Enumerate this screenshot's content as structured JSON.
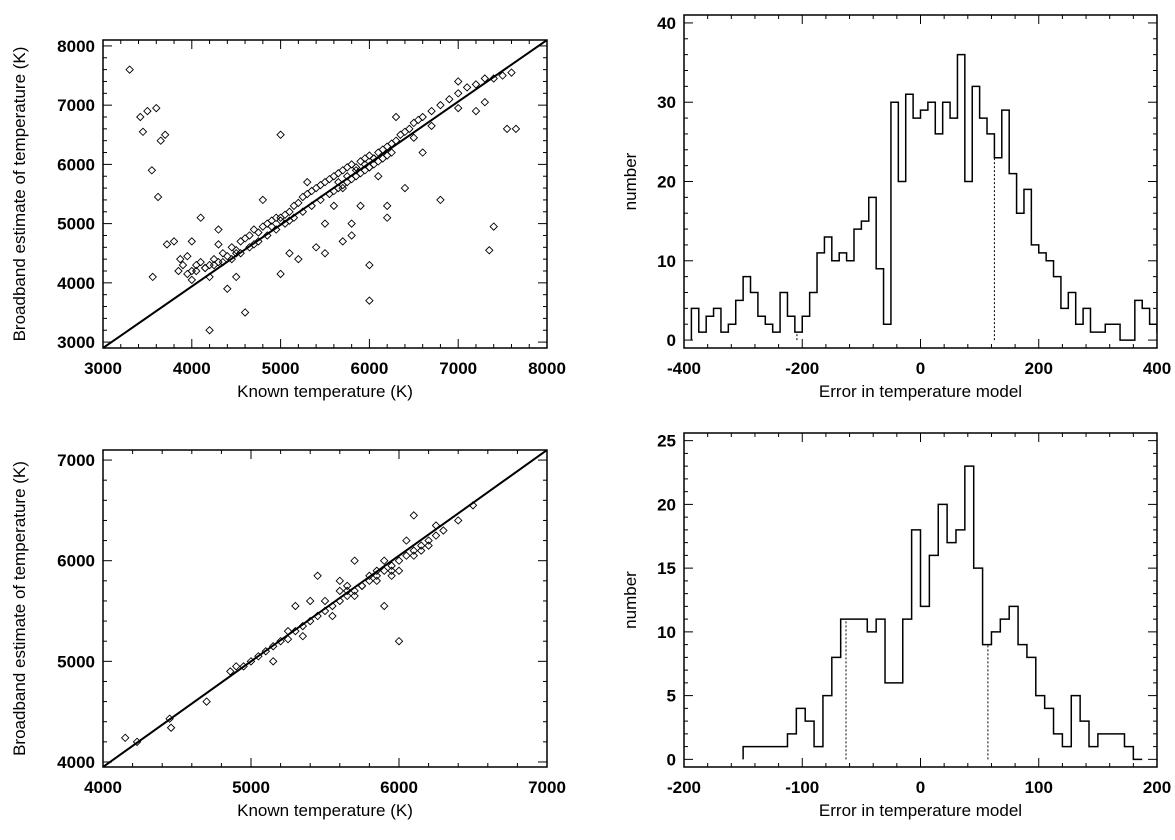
{
  "chart_data": [
    {
      "type": "scatter",
      "xlabel": "Known temperature (K)",
      "ylabel": "Broadband estimate of temperature (K)",
      "xlim": [
        3000,
        8000
      ],
      "ylim": [
        2900,
        8100
      ],
      "xticks": [
        3000,
        4000,
        5000,
        6000,
        7000,
        8000
      ],
      "yticks": [
        3000,
        4000,
        5000,
        6000,
        7000,
        8000
      ],
      "marker": "open-diamond",
      "fit_line": {
        "x": [
          3000,
          8000
        ],
        "y": [
          2900,
          8100
        ]
      },
      "x": [
        3300,
        3420,
        3450,
        3500,
        3550,
        3600,
        3620,
        3700,
        3800,
        3650,
        3560,
        3720,
        3870,
        3900,
        3950,
        4000,
        4050,
        4100,
        4150,
        4200,
        4250,
        4300,
        4200,
        4350,
        4400,
        4450,
        4500,
        4550,
        4600,
        4650,
        4700,
        4750,
        4800,
        4850,
        4900,
        4950,
        5000,
        5050,
        5100,
        5150,
        5200,
        5250,
        5300,
        5350,
        5400,
        5450,
        5500,
        5550,
        5600,
        5650,
        5700,
        5750,
        5800,
        5850,
        5900,
        5950,
        6000,
        6050,
        6100,
        6150,
        6200,
        6250,
        6300,
        6350,
        6400,
        6450,
        6500,
        6550,
        6600,
        6700,
        6800,
        6900,
        7000,
        7100,
        7200,
        7300,
        7400,
        7500,
        7600,
        4000,
        4100,
        4300,
        4500,
        4800,
        5000,
        5200,
        5400,
        5600,
        5800,
        6000,
        6200,
        6400,
        5100,
        5300,
        5500,
        5700,
        5900,
        6100,
        6300,
        6600,
        6800,
        7000,
        7200,
        7350,
        7400,
        7550,
        7650,
        4200,
        4400,
        4600,
        5000,
        5500,
        5800,
        6000,
        6200,
        3850,
        3950,
        4050,
        4150,
        4250,
        4350,
        4450,
        4550,
        4650,
        4750,
        4850,
        4950,
        5050,
        5150,
        5250,
        5350,
        5450,
        5550,
        5650,
        5750,
        5850,
        5950,
        6050,
        6150,
        6250,
        5700,
        5800,
        5900,
        6000,
        6100,
        5600,
        5650,
        5750,
        5850,
        5950,
        6050,
        4500,
        4700,
        4900,
        5100,
        6500,
        6700,
        7300,
        7000,
        4000,
        5000,
        6000,
        4300,
        5700,
        6200
      ],
      "y": [
        7600,
        6800,
        6550,
        6900,
        5900,
        6950,
        5450,
        6500,
        4700,
        6400,
        4100,
        4650,
        4400,
        4300,
        4450,
        4200,
        4300,
        4350,
        4250,
        4300,
        4400,
        4350,
        3200,
        4500,
        4450,
        4600,
        4550,
        4700,
        4750,
        4800,
        4900,
        4850,
        4950,
        5000,
        5050,
        5100,
        5100,
        5150,
        5200,
        5300,
        5350,
        5450,
        5500,
        5550,
        5600,
        5650,
        5700,
        5750,
        5800,
        5850,
        5900,
        5950,
        6000,
        5950,
        6050,
        6100,
        6150,
        6100,
        6200,
        6250,
        6300,
        6350,
        6400,
        6500,
        6550,
        6600,
        6700,
        6750,
        6800,
        6900,
        7000,
        7100,
        7200,
        7300,
        7350,
        7450,
        7450,
        7500,
        7550,
        4700,
        5100,
        4900,
        4100,
        5400,
        6500,
        4400,
        4600,
        5300,
        5000,
        3700,
        5300,
        5600,
        4500,
        5700,
        4500,
        4700,
        5300,
        5800,
        6800,
        6200,
        5400,
        7400,
        6900,
        4550,
        4950,
        6600,
        6600,
        4100,
        3900,
        3500,
        4150,
        5000,
        4800,
        4300,
        5100,
        4200,
        4150,
        4200,
        4250,
        4300,
        4350,
        4400,
        4500,
        4600,
        4700,
        4800,
        4900,
        5000,
        5100,
        5200,
        5300,
        5400,
        5500,
        5600,
        5700,
        5800,
        5900,
        6000,
        6100,
        6200,
        5650,
        5750,
        5850,
        5950,
        6050,
        5550,
        5700,
        5800,
        5900,
        6000,
        6100,
        4500,
        4650,
        4950,
        5050,
        6450,
        6650,
        7050,
        6950,
        4050,
        5050,
        5950,
        4650,
        5600,
        6150
      ]
    },
    {
      "type": "bar",
      "style": "step-histogram",
      "xlabel": "Error in temperature model",
      "ylabel": "number",
      "xlim": [
        -400,
        400
      ],
      "ylim": [
        -1,
        41
      ],
      "xticks": [
        -400,
        -200,
        0,
        200,
        400
      ],
      "yticks": [
        0,
        10,
        20,
        30,
        40
      ],
      "bin_width": 12.5,
      "bin_start": -387.5,
      "values": [
        4,
        1,
        3,
        4,
        1,
        2,
        5,
        8,
        6,
        3,
        2,
        1,
        6,
        3,
        1,
        3,
        6,
        11,
        13,
        10,
        11,
        10,
        14,
        15,
        18,
        9,
        2,
        30,
        20,
        31,
        28,
        29,
        30,
        26,
        30,
        28,
        36,
        20,
        32,
        28,
        26,
        23,
        29,
        21,
        16,
        19,
        12,
        11,
        10,
        8,
        4,
        6,
        2,
        4,
        1,
        1,
        2,
        2,
        0,
        0,
        5,
        4,
        2,
        1,
        2,
        0,
        4,
        2,
        1,
        2,
        0,
        0,
        3,
        0
      ],
      "vlines": [
        -209,
        125
      ]
    },
    {
      "type": "scatter",
      "xlabel": "Known temperature (K)",
      "ylabel": "Broadband estimate of temperature (K)",
      "xlim": [
        4000,
        7000
      ],
      "ylim": [
        3950,
        7100
      ],
      "xticks": [
        4000,
        5000,
        6000,
        7000
      ],
      "yticks": [
        4000,
        5000,
        6000,
        7000
      ],
      "marker": "open-diamond",
      "fit_line": {
        "x": [
          4000,
          7000
        ],
        "y": [
          3950,
          7100
        ]
      },
      "x": [
        4150,
        4230,
        4450,
        4460,
        4700,
        4860,
        4900,
        4950,
        5000,
        5050,
        5100,
        5150,
        5200,
        5250,
        5300,
        5350,
        5400,
        5450,
        5500,
        5550,
        5600,
        5650,
        5700,
        5750,
        5800,
        5850,
        5900,
        5950,
        6000,
        6050,
        6100,
        6150,
        6200,
        6250,
        6300,
        6400,
        6500,
        5300,
        5450,
        5600,
        5900,
        6000,
        6100,
        5150,
        5400,
        5700,
        5950,
        6050,
        6250,
        5500,
        5650,
        5750,
        5850,
        5950,
        5600,
        5700,
        5800,
        5900,
        6000,
        6100,
        6200,
        5550,
        5650,
        5850,
        6150,
        5250,
        5350
      ],
      "y": [
        4240,
        4200,
        4430,
        4340,
        4600,
        4900,
        4950,
        4950,
        5000,
        5050,
        5100,
        5150,
        5200,
        5220,
        5300,
        5350,
        5400,
        5450,
        5500,
        5550,
        5600,
        5650,
        5700,
        5750,
        5800,
        5850,
        5900,
        5950,
        6000,
        6050,
        6100,
        6150,
        6200,
        6250,
        6300,
        6400,
        6550,
        5550,
        5850,
        5800,
        5550,
        5200,
        6450,
        5000,
        5600,
        6000,
        5850,
        6200,
        6350,
        5600,
        5700,
        5750,
        5800,
        5900,
        5700,
        5650,
        5850,
        6000,
        5900,
        6050,
        6150,
        5450,
        5750,
        5900,
        6100,
        5300,
        5250
      ]
    },
    {
      "type": "bar",
      "style": "step-histogram",
      "xlabel": "Error in temperature model",
      "ylabel": "number",
      "xlim": [
        -200,
        200
      ],
      "ylim": [
        -0.6,
        25.6
      ],
      "xticks": [
        -200,
        -100,
        0,
        100,
        200
      ],
      "yticks": [
        0,
        5,
        10,
        15,
        20,
        25
      ],
      "bin_width": 7.5,
      "bin_start": -150,
      "values": [
        1,
        1,
        1,
        1,
        1,
        2,
        4,
        3,
        1,
        5,
        8,
        11,
        11,
        11,
        10,
        11,
        6,
        6,
        11,
        18,
        12,
        16,
        20,
        17,
        18,
        23,
        15,
        9,
        10,
        11,
        12,
        9,
        8,
        5,
        4,
        2,
        1,
        5,
        3,
        1,
        2,
        2,
        2,
        1,
        0
      ],
      "vlines": [
        -63,
        57
      ]
    }
  ]
}
